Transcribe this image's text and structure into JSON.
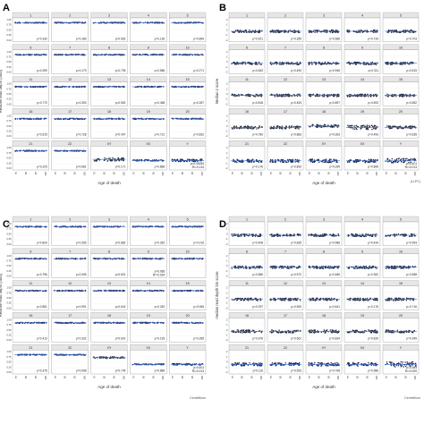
{
  "figure": {
    "footnotes": {
      "b": "(LLPC)",
      "c": "Centelitium",
      "d": "Centelitium"
    }
  },
  "chart_data": [
    {
      "panel": "A",
      "type": "scatter",
      "ylabel": "Relative read depth (ratio)",
      "xlabel": "Age of death",
      "xticks": [
        "75",
        "85",
        "95",
        "105",
        "75",
        "85",
        "95",
        "105",
        "75",
        "85",
        "95",
        "105",
        "75",
        "85",
        "95",
        "105",
        "75",
        "85",
        "95",
        "105"
      ],
      "yticks": [
        "1.00",
        "0.75",
        "0.50",
        "0.25",
        "0.00"
      ],
      "ylim": [
        0,
        1.25
      ],
      "facets": [
        {
          "name": "1",
          "p": "p=0.330",
          "y": 1.0,
          "spread": 0.02
        },
        {
          "name": "2",
          "p": "p=0.189",
          "y": 1.0,
          "spread": 0.02
        },
        {
          "name": "3",
          "p": "p=0.652",
          "y": 1.0,
          "spread": 0.02
        },
        {
          "name": "4",
          "p": "p=0.130",
          "y": 1.0,
          "spread": 0.02
        },
        {
          "name": "5",
          "p": "p=0.899",
          "y": 1.0,
          "spread": 0.02
        },
        {
          "name": "6",
          "p": "p=0.259",
          "y": 1.0,
          "spread": 0.02
        },
        {
          "name": "7",
          "p": "p=0.179",
          "y": 1.0,
          "spread": 0.02
        },
        {
          "name": "8",
          "p": "p=0.795",
          "y": 1.0,
          "spread": 0.02
        },
        {
          "name": "9",
          "p": "p=0.586",
          "y": 1.0,
          "spread": 0.02
        },
        {
          "name": "10",
          "p": "p=0.271",
          "y": 1.0,
          "spread": 0.02
        },
        {
          "name": "11",
          "p": "p=0.770",
          "y": 1.0,
          "spread": 0.02
        },
        {
          "name": "12",
          "p": "p=0.353",
          "y": 1.0,
          "spread": 0.02
        },
        {
          "name": "13",
          "p": "p=0.552",
          "y": 1.0,
          "spread": 0.02
        },
        {
          "name": "14",
          "p": "p=0.458",
          "y": 1.0,
          "spread": 0.02
        },
        {
          "name": "15",
          "p": "p=0.287",
          "y": 1.0,
          "spread": 0.02
        },
        {
          "name": "16",
          "p": "p=0.615",
          "y": 1.0,
          "spread": 0.02
        },
        {
          "name": "17",
          "p": "p=0.728",
          "y": 1.0,
          "spread": 0.02
        },
        {
          "name": "18",
          "p": "p=0.407",
          "y": 1.0,
          "spread": 0.02
        },
        {
          "name": "19",
          "p": "p=0.712",
          "y": 1.0,
          "spread": 0.02
        },
        {
          "name": "20",
          "p": "p=0.832",
          "y": 1.0,
          "spread": 0.02
        },
        {
          "name": "21",
          "p": "p=0.225",
          "y": 1.0,
          "spread": 0.02
        },
        {
          "name": "22",
          "p": "p=0.981",
          "y": 1.0,
          "spread": 0.02
        },
        {
          "name": "XY",
          "p": "p=0.171",
          "y": 0.55,
          "spread": 0.08
        },
        {
          "name": "XX",
          "p": "p=0.866",
          "y": 0.5,
          "spread": 0.03
        },
        {
          "name": "Y",
          "p": "p=0.00053",
          "p2": "R²=0.134",
          "y": 0.5,
          "spread": 0.06
        }
      ]
    },
    {
      "panel": "B",
      "type": "scatter",
      "ylabel": "Median z score",
      "xlabel": "Age of death",
      "xticks": [
        "75",
        "85",
        "95",
        "105",
        "75",
        "85",
        "95",
        "105",
        "75",
        "85",
        "95",
        "105",
        "75",
        "85",
        "95",
        "105",
        "75",
        "85",
        "95",
        "105"
      ],
      "yticks": [
        "2",
        "1",
        "0",
        "-1",
        "-2"
      ],
      "ylim": [
        -2.5,
        2.5
      ],
      "facets": [
        {
          "name": "1",
          "p": "p=0.921",
          "y": -0.3,
          "spread": 0.25
        },
        {
          "name": "2",
          "p": "p=0.355",
          "y": -0.3,
          "spread": 0.25
        },
        {
          "name": "3",
          "p": "p=0.585",
          "y": -0.3,
          "spread": 0.25
        },
        {
          "name": "4",
          "p": "p=0.729",
          "y": -0.3,
          "spread": 0.25
        },
        {
          "name": "5",
          "p": "p=0.703",
          "y": -0.3,
          "spread": 0.25
        },
        {
          "name": "6",
          "p": "p=0.483",
          "y": -0.3,
          "spread": 0.25
        },
        {
          "name": "7",
          "p": "p=0.490",
          "y": -0.3,
          "spread": 0.25
        },
        {
          "name": "8",
          "p": "p=0.946",
          "y": -0.3,
          "spread": 0.25
        },
        {
          "name": "9",
          "p": "p=0.311",
          "y": -0.3,
          "spread": 0.25
        },
        {
          "name": "10",
          "p": "p=0.515",
          "y": -0.3,
          "spread": 0.25
        },
        {
          "name": "11",
          "p": "p=0.818",
          "y": -0.3,
          "spread": 0.25
        },
        {
          "name": "12",
          "p": "p=0.453",
          "y": -0.3,
          "spread": 0.25
        },
        {
          "name": "13",
          "p": "p=0.897",
          "y": -0.3,
          "spread": 0.25
        },
        {
          "name": "14",
          "p": "p=0.693",
          "y": -0.3,
          "spread": 0.25
        },
        {
          "name": "15",
          "p": "p=0.652",
          "y": -0.3,
          "spread": 0.25
        },
        {
          "name": "16",
          "p": "p=0.780",
          "y": -0.3,
          "spread": 0.3
        },
        {
          "name": "17",
          "p": "p=0.883",
          "y": -0.3,
          "spread": 0.3
        },
        {
          "name": "18",
          "p": "p=0.363",
          "y": 0.0,
          "spread": 0.3
        },
        {
          "name": "19",
          "p": "p=0.493",
          "y": -0.3,
          "spread": 0.45
        },
        {
          "name": "20",
          "p": "p=0.635",
          "y": -0.3,
          "spread": 0.3
        },
        {
          "name": "21",
          "p": "p=0.176",
          "y": -0.6,
          "spread": 0.3
        },
        {
          "name": "22",
          "p": "p=0.890",
          "y": -0.6,
          "spread": 0.3
        },
        {
          "name": "XY",
          "p": "p=0.395",
          "y": -0.6,
          "spread": 0.35
        },
        {
          "name": "XX",
          "p": "p=0.895",
          "y": -0.6,
          "spread": 0.35
        },
        {
          "name": "Y",
          "p": "p=0.401",
          "p2": "R²=0.013",
          "y": -0.6,
          "spread": 0.5
        }
      ]
    },
    {
      "panel": "C",
      "type": "scatter",
      "ylabel": "Relative read depth (ratio)",
      "xlabel": "Age of death",
      "xticks": [
        "75",
        "85",
        "95",
        "100",
        "75",
        "85",
        "95",
        "100",
        "75",
        "85",
        "95",
        "100",
        "75",
        "85",
        "95",
        "100",
        "75",
        "85",
        "95",
        "100"
      ],
      "yticks": [
        "1.00",
        "0.75",
        "0.50",
        "0.25",
        "0.00"
      ],
      "ylim": [
        0,
        1.25
      ],
      "facets": [
        {
          "name": "1",
          "p": "p=0.829",
          "y": 1.0,
          "spread": 0.02
        },
        {
          "name": "2",
          "p": "p=0.395",
          "y": 1.0,
          "spread": 0.02
        },
        {
          "name": "3",
          "p": "p=0.882",
          "y": 1.0,
          "spread": 0.02
        },
        {
          "name": "4",
          "p": "p=0.352",
          "y": 1.0,
          "spread": 0.02
        },
        {
          "name": "5",
          "p": "p=0.216",
          "y": 1.0,
          "spread": 0.02
        },
        {
          "name": "6",
          "p": "p=0.796",
          "y": 1.0,
          "spread": 0.02
        },
        {
          "name": "7",
          "p": "p=0.495",
          "y": 1.0,
          "spread": 0.02
        },
        {
          "name": "8",
          "p": "p=0.831",
          "y": 1.0,
          "spread": 0.02
        },
        {
          "name": "9",
          "p": "p=0.065",
          "p2": "R²=0.024",
          "y": 1.0,
          "spread": 0.02
        },
        {
          "name": "10",
          "p": "",
          "y": 1.0,
          "spread": 0.02
        },
        {
          "name": "11",
          "p": "p=0.851",
          "y": 1.0,
          "spread": 0.02
        },
        {
          "name": "12",
          "p": "p=0.991",
          "y": 1.0,
          "spread": 0.02
        },
        {
          "name": "13",
          "p": "p=0.642",
          "y": 1.0,
          "spread": 0.02
        },
        {
          "name": "14",
          "p": "p=0.332",
          "y": 1.0,
          "spread": 0.02
        },
        {
          "name": "15",
          "p": "p=0.065",
          "y": 1.0,
          "spread": 0.02
        },
        {
          "name": "16",
          "p": "p=0.413",
          "y": 1.0,
          "spread": 0.02
        },
        {
          "name": "17",
          "p": "p=0.332",
          "y": 1.0,
          "spread": 0.02
        },
        {
          "name": "18",
          "p": "p=0.601",
          "y": 1.0,
          "spread": 0.02
        },
        {
          "name": "19",
          "p": "p=0.193",
          "y": 1.0,
          "spread": 0.02
        },
        {
          "name": "20",
          "p": "p=0.285",
          "y": 1.0,
          "spread": 0.02
        },
        {
          "name": "21",
          "p": "p=0.375",
          "y": 1.0,
          "spread": 0.02
        },
        {
          "name": "22",
          "p": "p=0.098",
          "y": 1.0,
          "spread": 0.02
        },
        {
          "name": "XY",
          "p": "p=0.745",
          "y": 0.85,
          "spread": 0.04
        },
        {
          "name": "XX",
          "p": "p=0.866",
          "y": 0.5,
          "spread": 0.02
        },
        {
          "name": "Y",
          "p": "p=0.401",
          "p2": "R²=0.013",
          "y": 0.5,
          "spread": 0.04
        }
      ]
    },
    {
      "panel": "D",
      "type": "scatter",
      "ylabel": "median read depth bin score",
      "xlabel": "Age of death",
      "xticks": [
        "75",
        "85",
        "95",
        "100",
        "75",
        "85",
        "95",
        "100",
        "75",
        "85",
        "95",
        "100",
        "75",
        "85",
        "95",
        "100",
        "75",
        "85",
        "95",
        "100"
      ],
      "yticks": [
        "2",
        "1",
        "0",
        "-1",
        "-2"
      ],
      "ylim": [
        -2.5,
        2.5
      ],
      "facets": [
        {
          "name": "1",
          "p": "p=0.408",
          "y": -0.3,
          "spread": 0.25
        },
        {
          "name": "2",
          "p": "p=0.835",
          "y": -0.3,
          "spread": 0.25
        },
        {
          "name": "3",
          "p": "p=0.588",
          "y": -0.3,
          "spread": 0.25
        },
        {
          "name": "4",
          "p": "p=0.434",
          "y": -0.3,
          "spread": 0.25
        },
        {
          "name": "5",
          "p": "p=0.993",
          "y": -0.3,
          "spread": 0.25
        },
        {
          "name": "6",
          "p": "p=0.686",
          "y": -0.3,
          "spread": 0.25
        },
        {
          "name": "7",
          "p": "p=0.572",
          "y": -0.3,
          "spread": 0.25
        },
        {
          "name": "8",
          "p": "p=0.486",
          "y": -0.3,
          "spread": 0.25
        },
        {
          "name": "9",
          "p": "p=0.362",
          "y": -0.3,
          "spread": 0.25
        },
        {
          "name": "10",
          "p": "p=0.658",
          "y": -0.3,
          "spread": 0.25
        },
        {
          "name": "11",
          "p": "p=0.297",
          "y": -0.3,
          "spread": 0.25
        },
        {
          "name": "12",
          "p": "p=0.590",
          "y": -0.3,
          "spread": 0.25
        },
        {
          "name": "13",
          "p": "p=0.641",
          "y": -0.3,
          "spread": 0.25
        },
        {
          "name": "14",
          "p": "p=0.176",
          "y": -0.3,
          "spread": 0.25
        },
        {
          "name": "15",
          "p": "p=0.716",
          "y": -0.3,
          "spread": 0.25
        },
        {
          "name": "16",
          "p": "p=0.976",
          "y": -0.3,
          "spread": 0.3
        },
        {
          "name": "17",
          "p": "p=0.661",
          "y": -0.3,
          "spread": 0.3
        },
        {
          "name": "18",
          "p": "p=0.834",
          "y": -0.3,
          "spread": 0.3
        },
        {
          "name": "19",
          "p": "p=0.826",
          "y": -0.3,
          "spread": 0.3
        },
        {
          "name": "20",
          "p": "p=0.949",
          "y": -0.3,
          "spread": 0.3
        },
        {
          "name": "21",
          "p": "p=0.116",
          "y": -0.5,
          "spread": 0.3
        },
        {
          "name": "22",
          "p": "p=0.593",
          "y": -0.5,
          "spread": 0.3
        },
        {
          "name": "XY",
          "p": "p=0.768",
          "y": -0.5,
          "spread": 0.35
        },
        {
          "name": "XX",
          "p": "p=0.586",
          "y": -0.5,
          "spread": 0.35
        },
        {
          "name": "Y",
          "p": "p=0.581",
          "p2": "R²=0.009",
          "y": -0.5,
          "spread": 0.5
        }
      ]
    }
  ],
  "colors": {
    "point": "#1f2a44",
    "fit": "#3b6fd8",
    "strip": "#e6e6e6",
    "panel_border": "#9a9a9a",
    "axis_text": "#333333"
  }
}
